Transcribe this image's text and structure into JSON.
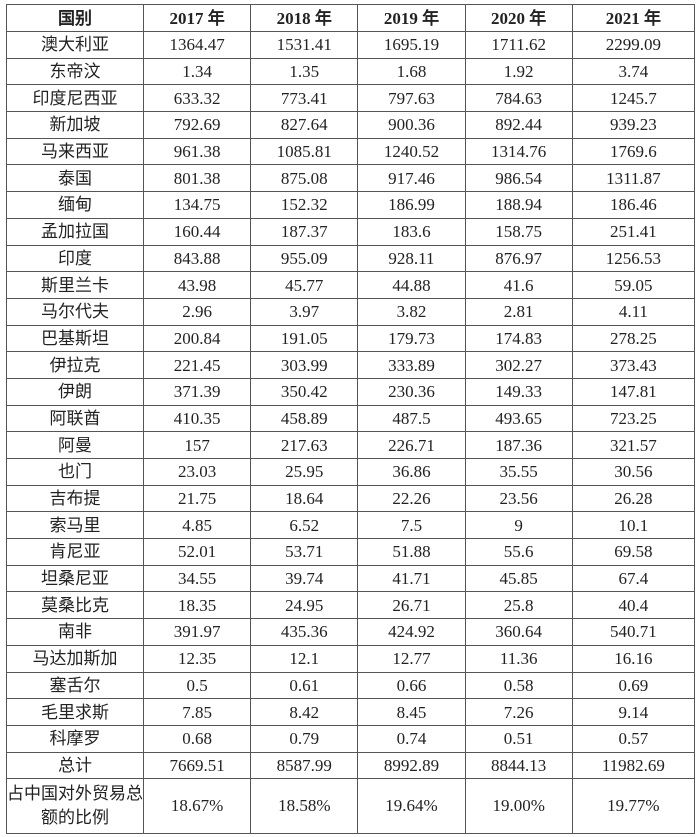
{
  "table": {
    "headers": [
      "国别",
      "2017 年",
      "2018 年",
      "2019 年",
      "2020 年",
      "2021 年"
    ],
    "rows": [
      [
        "澳大利亚",
        "1364.47",
        "1531.41",
        "1695.19",
        "1711.62",
        "2299.09"
      ],
      [
        "东帝汶",
        "1.34",
        "1.35",
        "1.68",
        "1.92",
        "3.74"
      ],
      [
        "印度尼西亚",
        "633.32",
        "773.41",
        "797.63",
        "784.63",
        "1245.7"
      ],
      [
        "新加坡",
        "792.69",
        "827.64",
        "900.36",
        "892.44",
        "939.23"
      ],
      [
        "马来西亚",
        "961.38",
        "1085.81",
        "1240.52",
        "1314.76",
        "1769.6"
      ],
      [
        "泰国",
        "801.38",
        "875.08",
        "917.46",
        "986.54",
        "1311.87"
      ],
      [
        "缅甸",
        "134.75",
        "152.32",
        "186.99",
        "188.94",
        "186.46"
      ],
      [
        "孟加拉国",
        "160.44",
        "187.37",
        "183.6",
        "158.75",
        "251.41"
      ],
      [
        "印度",
        "843.88",
        "955.09",
        "928.11",
        "876.97",
        "1256.53"
      ],
      [
        "斯里兰卡",
        "43.98",
        "45.77",
        "44.88",
        "41.6",
        "59.05"
      ],
      [
        "马尔代夫",
        "2.96",
        "3.97",
        "3.82",
        "2.81",
        "4.11"
      ],
      [
        "巴基斯坦",
        "200.84",
        "191.05",
        "179.73",
        "174.83",
        "278.25"
      ],
      [
        "伊拉克",
        "221.45",
        "303.99",
        "333.89",
        "302.27",
        "373.43"
      ],
      [
        "伊朗",
        "371.39",
        "350.42",
        "230.36",
        "149.33",
        "147.81"
      ],
      [
        "阿联酋",
        "410.35",
        "458.89",
        "487.5",
        "493.65",
        "723.25"
      ],
      [
        "阿曼",
        "157",
        "217.63",
        "226.71",
        "187.36",
        "321.57"
      ],
      [
        "也门",
        "23.03",
        "25.95",
        "36.86",
        "35.55",
        "30.56"
      ],
      [
        "吉布提",
        "21.75",
        "18.64",
        "22.26",
        "23.56",
        "26.28"
      ],
      [
        "索马里",
        "4.85",
        "6.52",
        "7.5",
        "9",
        "10.1"
      ],
      [
        "肯尼亚",
        "52.01",
        "53.71",
        "51.88",
        "55.6",
        "69.58"
      ],
      [
        "坦桑尼亚",
        "34.55",
        "39.74",
        "41.71",
        "45.85",
        "67.4"
      ],
      [
        "莫桑比克",
        "18.35",
        "24.95",
        "26.71",
        "25.8",
        "40.4"
      ],
      [
        "南非",
        "391.97",
        "435.36",
        "424.92",
        "360.64",
        "540.71"
      ],
      [
        "马达加斯加",
        "12.35",
        "12.1",
        "12.77",
        "11.36",
        "16.16"
      ],
      [
        "塞舌尔",
        "0.5",
        "0.61",
        "0.66",
        "0.58",
        "0.69"
      ],
      [
        "毛里求斯",
        "7.85",
        "8.42",
        "8.45",
        "7.26",
        "9.14"
      ],
      [
        "科摩罗",
        "0.68",
        "0.79",
        "0.74",
        "0.51",
        "0.57"
      ],
      [
        "总计",
        "7669.51",
        "8587.99",
        "8992.89",
        "8844.13",
        "11982.69"
      ]
    ],
    "ratio_row": [
      "占中国对外贸易总额的比例",
      "18.67%",
      "18.58%",
      "19.64%",
      "19.00%",
      "19.77%"
    ]
  }
}
